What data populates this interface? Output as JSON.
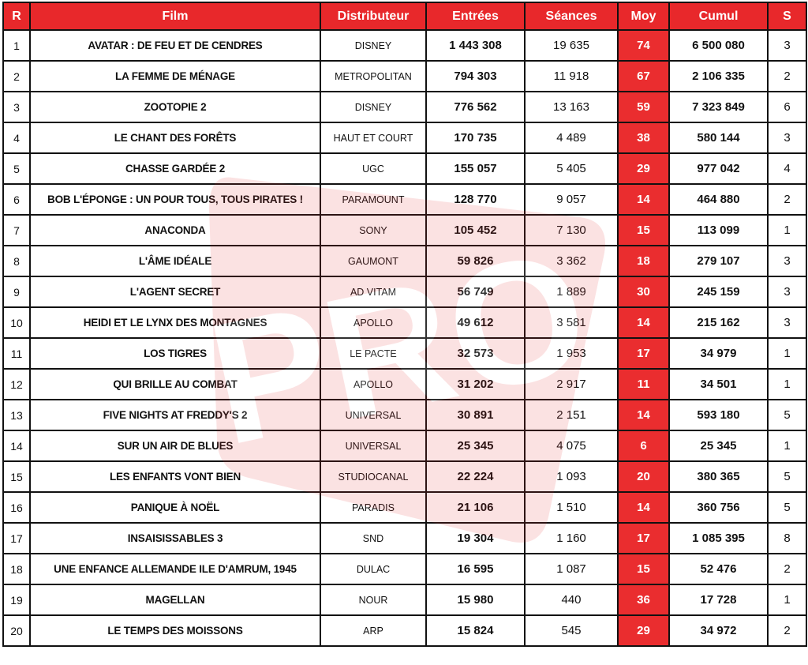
{
  "watermark": "PRO",
  "table": {
    "header": [
      "R",
      "Film",
      "Distributeur",
      "Entrées",
      "Séances",
      "Moy",
      "Cumul",
      "S"
    ],
    "rows": [
      [
        "1",
        "AVATAR : DE FEU ET DE CENDRES",
        "DISNEY",
        "1 443 308",
        "19 635",
        "74",
        "6 500 080",
        "3"
      ],
      [
        "2",
        "LA FEMME DE MÉNAGE",
        "METROPOLITAN",
        "794 303",
        "11 918",
        "67",
        "2 106 335",
        "2"
      ],
      [
        "3",
        "ZOOTOPIE 2",
        "DISNEY",
        "776 562",
        "13 163",
        "59",
        "7 323 849",
        "6"
      ],
      [
        "4",
        "LE CHANT DES FORÊTS",
        "HAUT ET COURT",
        "170 735",
        "4 489",
        "38",
        "580 144",
        "3"
      ],
      [
        "5",
        "CHASSE GARDÉE 2",
        "UGC",
        "155 057",
        "5 405",
        "29",
        "977 042",
        "4"
      ],
      [
        "6",
        "BOB L'ÉPONGE : UN POUR TOUS, TOUS PIRATES !",
        "PARAMOUNT",
        "128 770",
        "9 057",
        "14",
        "464 880",
        "2"
      ],
      [
        "7",
        "ANACONDA",
        "SONY",
        "105 452",
        "7 130",
        "15",
        "113 099",
        "1"
      ],
      [
        "8",
        "L'ÂME IDÉALE",
        "GAUMONT",
        "59 826",
        "3 362",
        "18",
        "279 107",
        "3"
      ],
      [
        "9",
        "L'AGENT SECRET",
        "AD VITAM",
        "56 749",
        "1 889",
        "30",
        "245 159",
        "3"
      ],
      [
        "10",
        "HEIDI ET LE LYNX DES MONTAGNES",
        "APOLLO",
        "49 612",
        "3 581",
        "14",
        "215 162",
        "3"
      ],
      [
        "11",
        "LOS TIGRES",
        "LE PACTE",
        "32 573",
        "1 953",
        "17",
        "34 979",
        "1"
      ],
      [
        "12",
        "QUI BRILLE AU COMBAT",
        "APOLLO",
        "31 202",
        "2 917",
        "11",
        "34 501",
        "1"
      ],
      [
        "13",
        "FIVE NIGHTS AT FREDDY'S 2",
        "UNIVERSAL",
        "30 891",
        "2 151",
        "14",
        "593 180",
        "5"
      ],
      [
        "14",
        "SUR UN AIR DE BLUES",
        "UNIVERSAL",
        "25 345",
        "4 075",
        "6",
        "25 345",
        "1"
      ],
      [
        "15",
        "LES ENFANTS VONT BIEN",
        "STUDIOCANAL",
        "22 224",
        "1 093",
        "20",
        "380 365",
        "5"
      ],
      [
        "16",
        "PANIQUE À NOËL",
        "PARADIS",
        "21 106",
        "1 510",
        "14",
        "360 756",
        "5"
      ],
      [
        "17",
        "INSAISISSABLES 3",
        "SND",
        "19 304",
        "1 160",
        "17",
        "1 085 395",
        "8"
      ],
      [
        "18",
        "UNE ENFANCE ALLEMANDE ILE D'AMRUM, 1945",
        "DULAC",
        "16 595",
        "1 087",
        "15",
        "52 476",
        "2"
      ],
      [
        "19",
        "MAGELLAN",
        "NOUR",
        "15 980",
        "440",
        "36",
        "17 728",
        "1"
      ],
      [
        "20",
        "LE TEMPS DES MOISSONS",
        "ARP",
        "15 824",
        "545",
        "29",
        "34 972",
        "2"
      ]
    ]
  }
}
